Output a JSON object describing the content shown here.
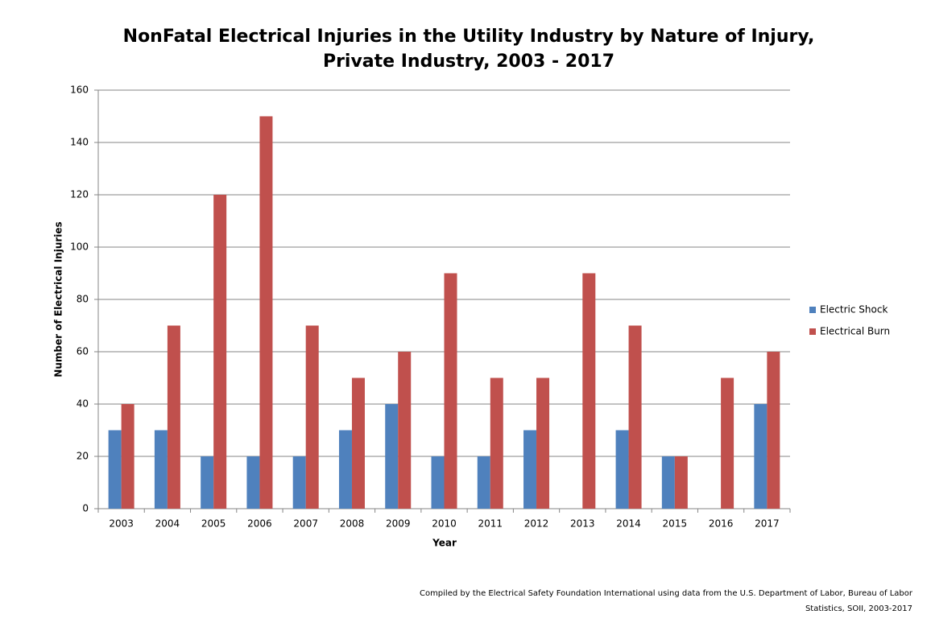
{
  "chart_data": {
    "type": "bar",
    "title": [
      "NonFatal Electrical Injuries in the Utility Industry by Nature of Injury,",
      "Private Industry, 2003 - 2017"
    ],
    "xlabel": "Year",
    "ylabel": "Number of Electrical Injuries",
    "categories": [
      "2003",
      "2004",
      "2005",
      "2006",
      "2007",
      "2008",
      "2009",
      "2010",
      "2011",
      "2012",
      "2013",
      "2014",
      "2015",
      "2016",
      "2017"
    ],
    "series": [
      {
        "name": "Electric Shock",
        "color": "#4f81bd",
        "values": [
          30,
          30,
          20,
          20,
          20,
          30,
          40,
          20,
          20,
          30,
          0,
          30,
          20,
          0,
          40
        ]
      },
      {
        "name": "Electrical Burn",
        "color": "#c0504d",
        "values": [
          40,
          70,
          120,
          150,
          70,
          50,
          60,
          90,
          50,
          50,
          90,
          70,
          20,
          50,
          60
        ]
      }
    ],
    "ylim": [
      0,
      160
    ],
    "yticks": [
      0,
      20,
      40,
      60,
      80,
      100,
      120,
      140,
      160
    ],
    "grid": true,
    "legend": "right",
    "source": [
      "Compiled by the Electrical Safety Foundation International using data from the U.S. Department of Labor, Bureau of Labor",
      "Statistics, SOII, 2003-2017"
    ]
  }
}
